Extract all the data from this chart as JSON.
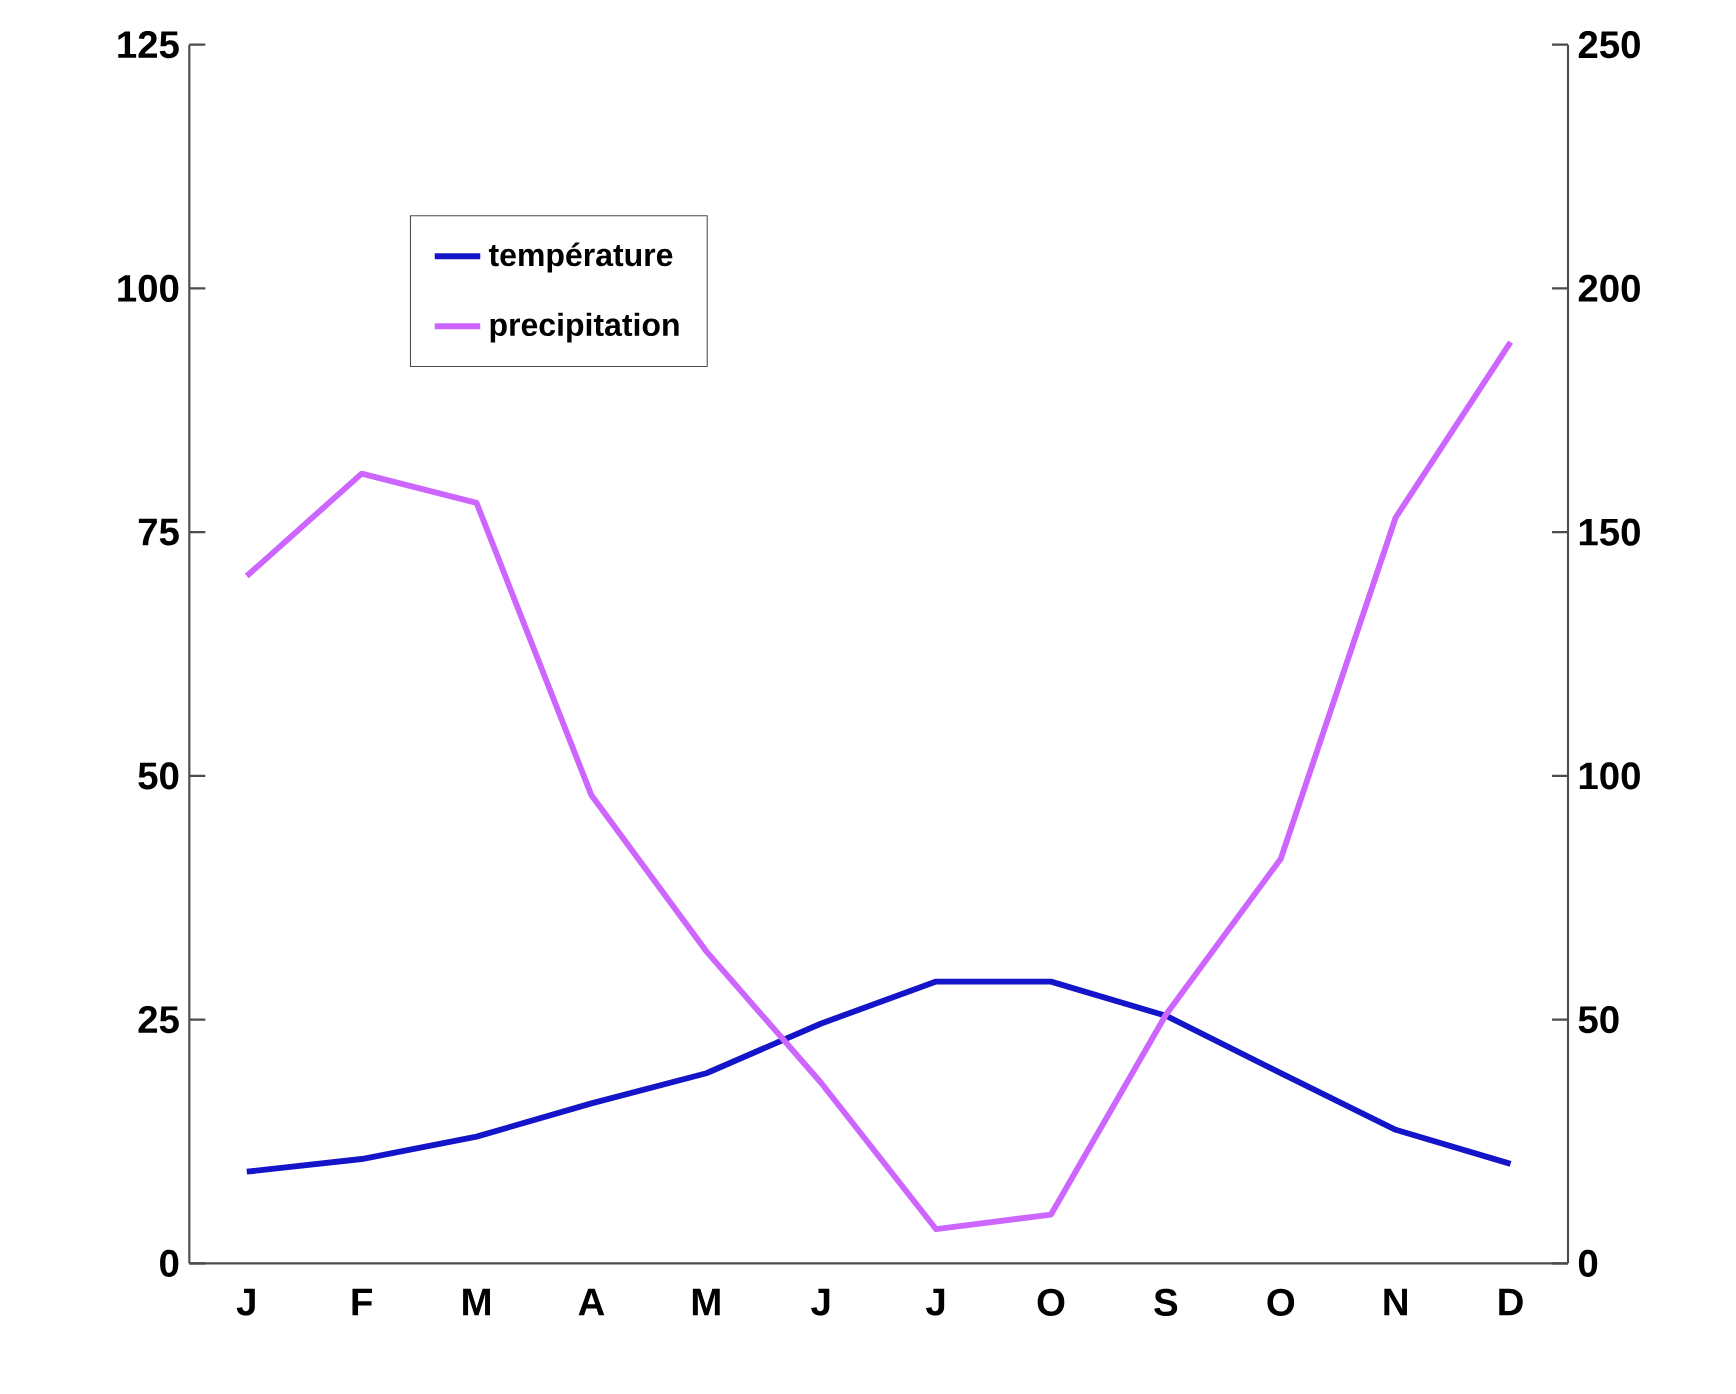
{
  "chart_data": {
    "type": "line",
    "categories": [
      "J",
      "F",
      "M",
      "A",
      "M",
      "J",
      "J",
      "O",
      "S",
      "O",
      "N",
      "D"
    ],
    "series": [
      {
        "name": "température",
        "color": "#1414c8",
        "values": [
          9.4,
          10.7,
          13,
          16.4,
          19.5,
          24.6,
          28.9,
          28.9,
          25.4,
          19.5,
          13.7,
          10.2
        ]
      },
      {
        "name": "precipitation",
        "color": "#cc66ff",
        "axis": "y2",
        "values": [
          141,
          162,
          156,
          96,
          64,
          37,
          7,
          10,
          51,
          83,
          153,
          189
        ]
      }
    ],
    "ylim": [
      0,
      125
    ],
    "yticks": [
      0,
      25,
      50,
      75,
      100,
      125
    ],
    "y2lim": [
      0,
      250
    ],
    "y2ticks": [
      0,
      50,
      100,
      150,
      200,
      250
    ],
    "legend": "top left",
    "grid": false,
    "marker": "none",
    "line_style": "solid"
  }
}
